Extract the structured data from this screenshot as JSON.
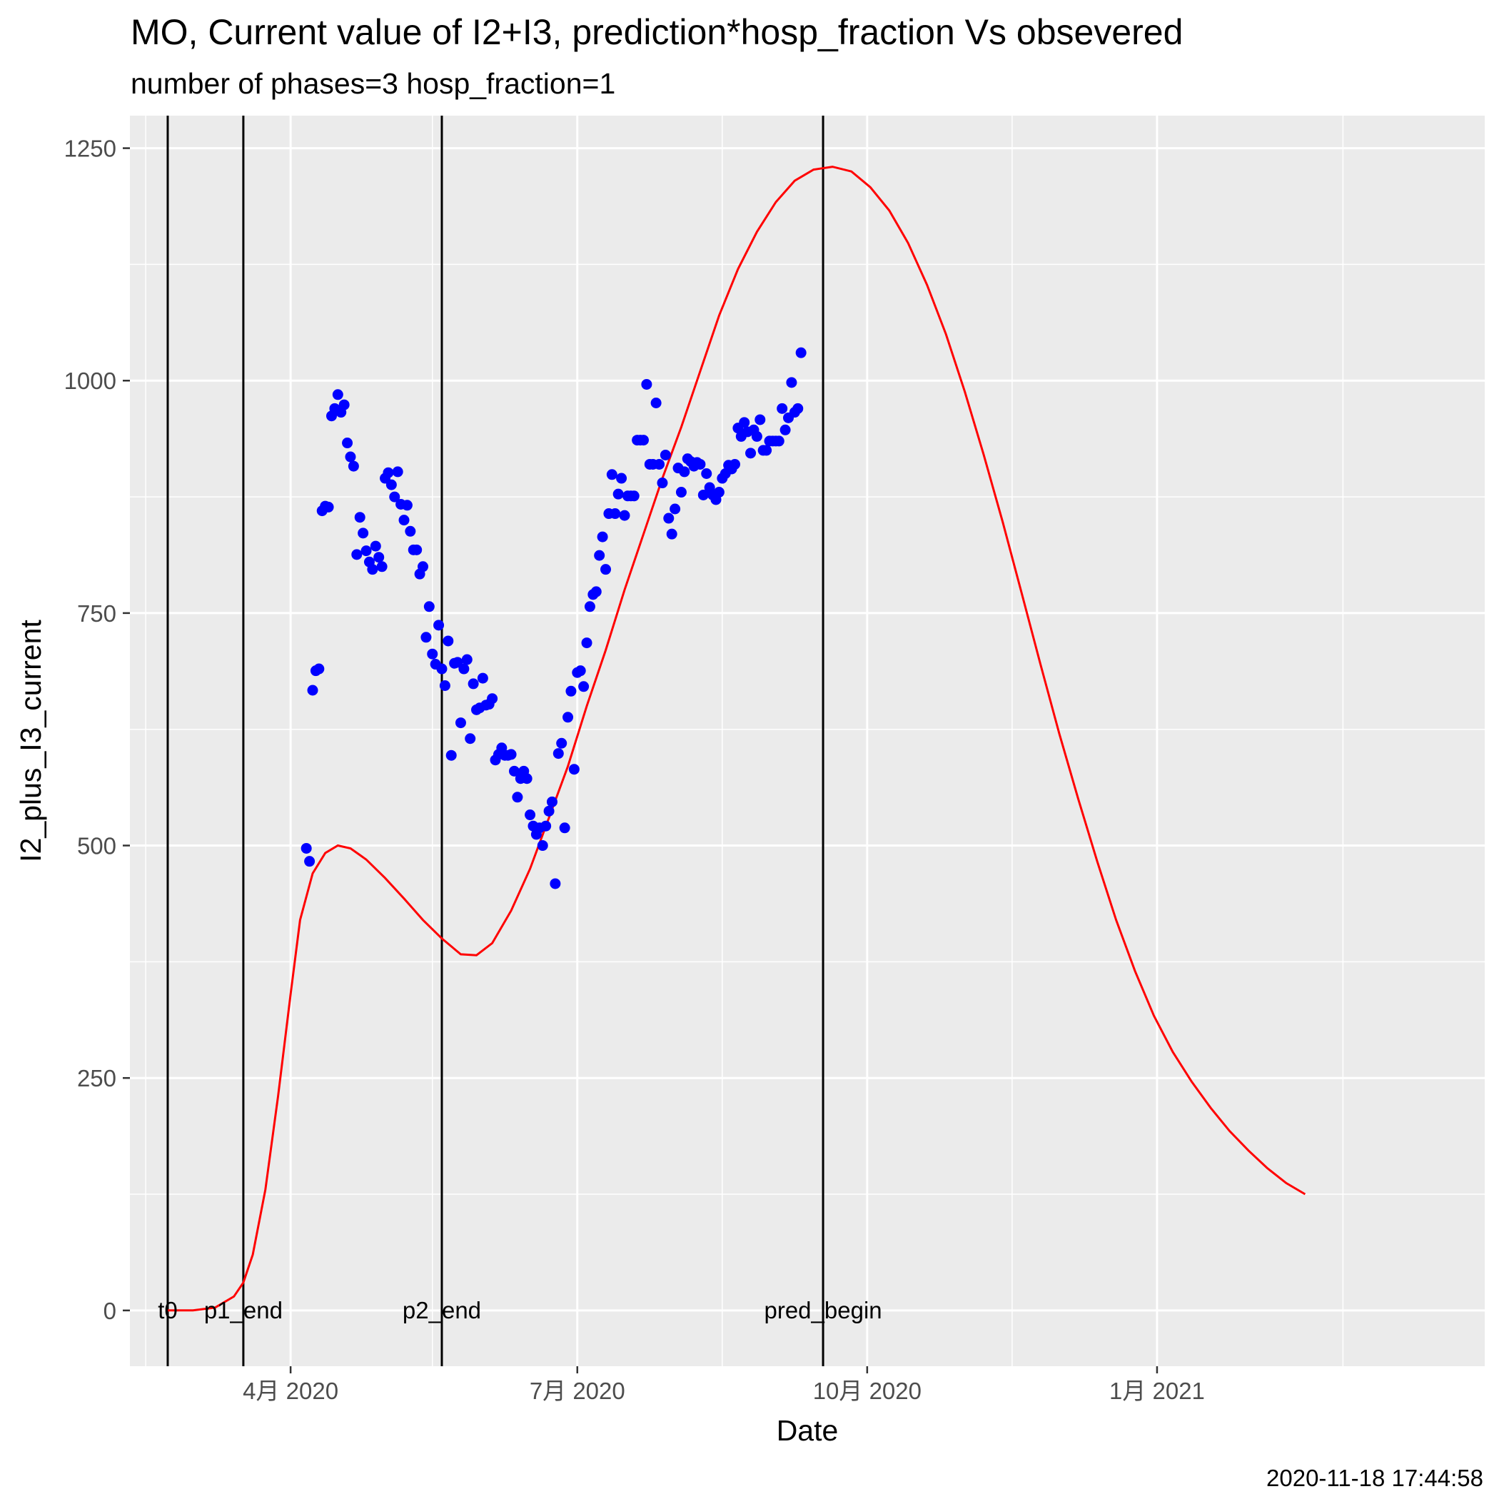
{
  "chart_data": {
    "type": "scatter",
    "title": "MO, Current value of I2+I3, prediction*hosp_fraction Vs obsevered",
    "subtitle": "number of phases=3   hosp_fraction=1",
    "xlabel": "Date",
    "ylabel": "I2_plus_I3_current",
    "timestamp": "2020-11-18 17:44:58",
    "grid": true,
    "legend": "none",
    "xlim": [
      "2020-02-10",
      "2021-04-15"
    ],
    "ylim": [
      -60,
      1285
    ],
    "x_ticks": [
      {
        "date": "2020-04-01",
        "label": "4月 2020"
      },
      {
        "date": "2020-07-01",
        "label": "7月 2020"
      },
      {
        "date": "2020-10-01",
        "label": "10月 2020"
      },
      {
        "date": "2021-01-01",
        "label": "1月 2021"
      }
    ],
    "x_minor": [
      "2020-02-15",
      "2020-05-16",
      "2020-08-16",
      "2020-11-16",
      "2021-03-01"
    ],
    "y_ticks": [
      0,
      250,
      500,
      750,
      1000,
      1250
    ],
    "y_minor": [
      125,
      375,
      625,
      875,
      1125
    ],
    "colors": {
      "panel": "#ebebeb",
      "grid": "#ffffff",
      "prediction": "#ff0000",
      "observed": "#0000ff",
      "phase_line": "#000000"
    },
    "phase_lines": [
      {
        "date": "2020-02-22",
        "label": "t0"
      },
      {
        "date": "2020-03-17",
        "label": "p1_end"
      },
      {
        "date": "2020-05-19",
        "label": "p2_end"
      },
      {
        "date": "2020-09-17",
        "label": "pred_begin"
      }
    ],
    "series": [
      {
        "kind": "line",
        "color": "#ff0000",
        "points": [
          [
            "2020-02-22",
            0
          ],
          [
            "2020-03-01",
            0
          ],
          [
            "2020-03-08",
            3
          ],
          [
            "2020-03-14",
            15
          ],
          [
            "2020-03-17",
            30
          ],
          [
            "2020-03-20",
            60
          ],
          [
            "2020-03-24",
            130
          ],
          [
            "2020-03-28",
            230
          ],
          [
            "2020-04-01",
            340
          ],
          [
            "2020-04-04",
            420
          ],
          [
            "2020-04-08",
            470
          ],
          [
            "2020-04-12",
            492
          ],
          [
            "2020-04-16",
            500
          ],
          [
            "2020-04-20",
            497
          ],
          [
            "2020-04-25",
            485
          ],
          [
            "2020-05-01",
            465
          ],
          [
            "2020-05-07",
            443
          ],
          [
            "2020-05-13",
            420
          ],
          [
            "2020-05-19",
            400
          ],
          [
            "2020-05-25",
            383
          ],
          [
            "2020-05-30",
            382
          ],
          [
            "2020-06-04",
            395
          ],
          [
            "2020-06-10",
            430
          ],
          [
            "2020-06-16",
            475
          ],
          [
            "2020-06-22",
            530
          ],
          [
            "2020-06-28",
            585
          ],
          [
            "2020-07-04",
            650
          ],
          [
            "2020-07-10",
            710
          ],
          [
            "2020-07-16",
            775
          ],
          [
            "2020-07-22",
            835
          ],
          [
            "2020-07-28",
            895
          ],
          [
            "2020-08-03",
            950
          ],
          [
            "2020-08-09",
            1010
          ],
          [
            "2020-08-15",
            1070
          ],
          [
            "2020-08-21",
            1120
          ],
          [
            "2020-08-27",
            1160
          ],
          [
            "2020-09-02",
            1192
          ],
          [
            "2020-09-08",
            1215
          ],
          [
            "2020-09-14",
            1227
          ],
          [
            "2020-09-20",
            1230
          ],
          [
            "2020-09-26",
            1225
          ],
          [
            "2020-10-02",
            1208
          ],
          [
            "2020-10-08",
            1183
          ],
          [
            "2020-10-14",
            1148
          ],
          [
            "2020-10-20",
            1103
          ],
          [
            "2020-10-26",
            1050
          ],
          [
            "2020-11-01",
            988
          ],
          [
            "2020-11-07",
            920
          ],
          [
            "2020-11-13",
            848
          ],
          [
            "2020-11-19",
            772
          ],
          [
            "2020-11-25",
            695
          ],
          [
            "2020-12-01",
            620
          ],
          [
            "2020-12-07",
            550
          ],
          [
            "2020-12-13",
            483
          ],
          [
            "2020-12-19",
            420
          ],
          [
            "2020-12-25",
            365
          ],
          [
            "2020-12-31",
            317
          ],
          [
            "2021-01-06",
            278
          ],
          [
            "2021-01-12",
            246
          ],
          [
            "2021-01-18",
            218
          ],
          [
            "2021-01-24",
            193
          ],
          [
            "2021-01-30",
            172
          ],
          [
            "2021-02-05",
            153
          ],
          [
            "2021-02-11",
            137
          ],
          [
            "2021-02-17",
            125
          ]
        ]
      },
      {
        "kind": "points",
        "color": "#0000ff",
        "points": [
          [
            "2020-04-06",
            497
          ],
          [
            "2020-04-07",
            483
          ],
          [
            "2020-04-08",
            667
          ],
          [
            "2020-04-09",
            688
          ],
          [
            "2020-04-10",
            690
          ],
          [
            "2020-04-11",
            860
          ],
          [
            "2020-04-12",
            865
          ],
          [
            "2020-04-13",
            864
          ],
          [
            "2020-04-14",
            962
          ],
          [
            "2020-04-15",
            970
          ],
          [
            "2020-04-16",
            985
          ],
          [
            "2020-04-17",
            966
          ],
          [
            "2020-04-18",
            974
          ],
          [
            "2020-04-19",
            933
          ],
          [
            "2020-04-20",
            918
          ],
          [
            "2020-04-21",
            908
          ],
          [
            "2020-04-22",
            813
          ],
          [
            "2020-04-23",
            853
          ],
          [
            "2020-04-24",
            836
          ],
          [
            "2020-04-25",
            817
          ],
          [
            "2020-04-26",
            805
          ],
          [
            "2020-04-27",
            797
          ],
          [
            "2020-04-28",
            822
          ],
          [
            "2020-04-29",
            810
          ],
          [
            "2020-04-30",
            800
          ],
          [
            "2020-05-01",
            895
          ],
          [
            "2020-05-02",
            901
          ],
          [
            "2020-05-03",
            888
          ],
          [
            "2020-05-04",
            875
          ],
          [
            "2020-05-05",
            902
          ],
          [
            "2020-05-06",
            867
          ],
          [
            "2020-05-07",
            850
          ],
          [
            "2020-05-08",
            866
          ],
          [
            "2020-05-09",
            838
          ],
          [
            "2020-05-10",
            818
          ],
          [
            "2020-05-11",
            818
          ],
          [
            "2020-05-12",
            792
          ],
          [
            "2020-05-13",
            800
          ],
          [
            "2020-05-14",
            724
          ],
          [
            "2020-05-15",
            757
          ],
          [
            "2020-05-16",
            706
          ],
          [
            "2020-05-17",
            695
          ],
          [
            "2020-05-18",
            737
          ],
          [
            "2020-05-19",
            690
          ],
          [
            "2020-05-20",
            672
          ],
          [
            "2020-05-21",
            720
          ],
          [
            "2020-05-22",
            597
          ],
          [
            "2020-05-23",
            696
          ],
          [
            "2020-05-24",
            697
          ],
          [
            "2020-05-25",
            632
          ],
          [
            "2020-05-26",
            690
          ],
          [
            "2020-05-27",
            700
          ],
          [
            "2020-05-28",
            615
          ],
          [
            "2020-05-29",
            674
          ],
          [
            "2020-05-30",
            646
          ],
          [
            "2020-05-31",
            648
          ],
          [
            "2020-06-01",
            680
          ],
          [
            "2020-06-02",
            651
          ],
          [
            "2020-06-03",
            652
          ],
          [
            "2020-06-04",
            658
          ],
          [
            "2020-06-05",
            592
          ],
          [
            "2020-06-06",
            598
          ],
          [
            "2020-06-07",
            605
          ],
          [
            "2020-06-08",
            597
          ],
          [
            "2020-06-09",
            597
          ],
          [
            "2020-06-10",
            598
          ],
          [
            "2020-06-11",
            580
          ],
          [
            "2020-06-12",
            552
          ],
          [
            "2020-06-13",
            572
          ],
          [
            "2020-06-14",
            580
          ],
          [
            "2020-06-15",
            572
          ],
          [
            "2020-06-16",
            533
          ],
          [
            "2020-06-17",
            521
          ],
          [
            "2020-06-18",
            512
          ],
          [
            "2020-06-19",
            519
          ],
          [
            "2020-06-20",
            500
          ],
          [
            "2020-06-21",
            521
          ],
          [
            "2020-06-22",
            537
          ],
          [
            "2020-06-23",
            547
          ],
          [
            "2020-06-24",
            459
          ],
          [
            "2020-06-25",
            599
          ],
          [
            "2020-06-26",
            610
          ],
          [
            "2020-06-27",
            519
          ],
          [
            "2020-06-28",
            638
          ],
          [
            "2020-06-29",
            666
          ],
          [
            "2020-06-30",
            582
          ],
          [
            "2020-07-01",
            686
          ],
          [
            "2020-07-02",
            688
          ],
          [
            "2020-07-03",
            671
          ],
          [
            "2020-07-04",
            718
          ],
          [
            "2020-07-05",
            757
          ],
          [
            "2020-07-06",
            770
          ],
          [
            "2020-07-07",
            773
          ],
          [
            "2020-07-08",
            812
          ],
          [
            "2020-07-09",
            832
          ],
          [
            "2020-07-10",
            797
          ],
          [
            "2020-07-11",
            857
          ],
          [
            "2020-07-12",
            899
          ],
          [
            "2020-07-13",
            857
          ],
          [
            "2020-07-14",
            878
          ],
          [
            "2020-07-15",
            895
          ],
          [
            "2020-07-16",
            855
          ],
          [
            "2020-07-17",
            876
          ],
          [
            "2020-07-18",
            876
          ],
          [
            "2020-07-19",
            876
          ],
          [
            "2020-07-20",
            936
          ],
          [
            "2020-07-21",
            936
          ],
          [
            "2020-07-22",
            936
          ],
          [
            "2020-07-23",
            996
          ],
          [
            "2020-07-24",
            910
          ],
          [
            "2020-07-25",
            910
          ],
          [
            "2020-07-26",
            976
          ],
          [
            "2020-07-27",
            910
          ],
          [
            "2020-07-28",
            890
          ],
          [
            "2020-07-29",
            920
          ],
          [
            "2020-07-30",
            852
          ],
          [
            "2020-07-31",
            835
          ],
          [
            "2020-08-01",
            862
          ],
          [
            "2020-08-02",
            906
          ],
          [
            "2020-08-03",
            880
          ],
          [
            "2020-08-04",
            902
          ],
          [
            "2020-08-05",
            916
          ],
          [
            "2020-08-06",
            913
          ],
          [
            "2020-08-07",
            908
          ],
          [
            "2020-08-08",
            912
          ],
          [
            "2020-08-09",
            910
          ],
          [
            "2020-08-10",
            877
          ],
          [
            "2020-08-11",
            900
          ],
          [
            "2020-08-12",
            885
          ],
          [
            "2020-08-13",
            877
          ],
          [
            "2020-08-14",
            872
          ],
          [
            "2020-08-15",
            880
          ],
          [
            "2020-08-16",
            895
          ],
          [
            "2020-08-17",
            900
          ],
          [
            "2020-08-18",
            909
          ],
          [
            "2020-08-19",
            905
          ],
          [
            "2020-08-20",
            910
          ],
          [
            "2020-08-21",
            949
          ],
          [
            "2020-08-22",
            940
          ],
          [
            "2020-08-23",
            955
          ],
          [
            "2020-08-24",
            945
          ],
          [
            "2020-08-25",
            922
          ],
          [
            "2020-08-26",
            947
          ],
          [
            "2020-08-27",
            940
          ],
          [
            "2020-08-28",
            958
          ],
          [
            "2020-08-29",
            925
          ],
          [
            "2020-08-30",
            925
          ],
          [
            "2020-08-31",
            935
          ],
          [
            "2020-09-01",
            935
          ],
          [
            "2020-09-02",
            935
          ],
          [
            "2020-09-03",
            935
          ],
          [
            "2020-09-04",
            970
          ],
          [
            "2020-09-05",
            947
          ],
          [
            "2020-09-06",
            960
          ],
          [
            "2020-09-07",
            998
          ],
          [
            "2020-09-08",
            966
          ],
          [
            "2020-09-09",
            970
          ],
          [
            "2020-09-10",
            1030
          ]
        ]
      }
    ]
  }
}
